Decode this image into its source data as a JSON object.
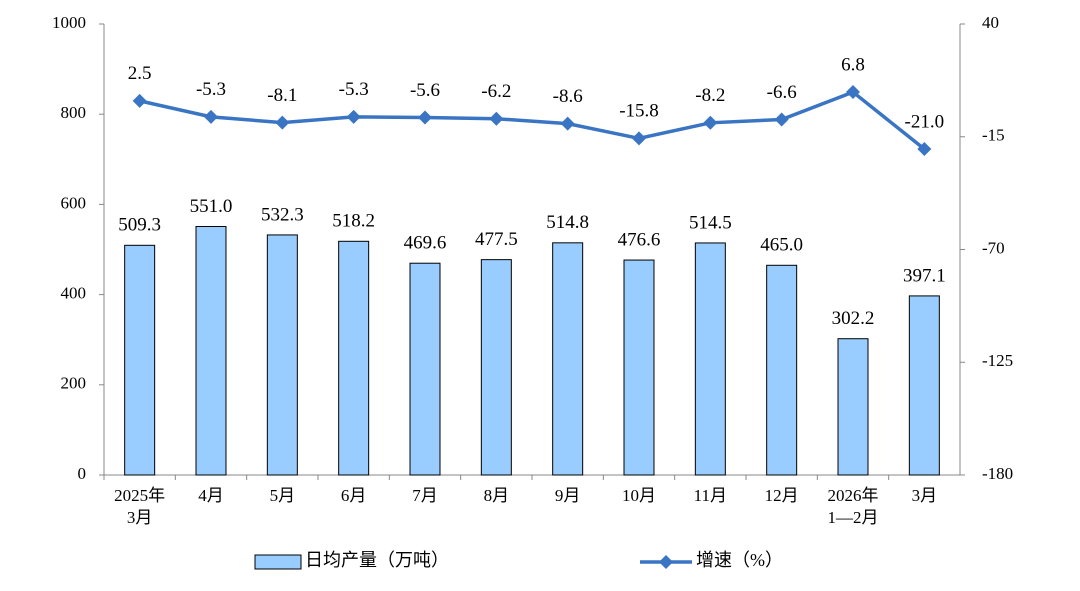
{
  "chart_data": {
    "type": "bar_line",
    "categories": [
      "2025年\n3月",
      "4月",
      "5月",
      "6月",
      "7月",
      "8月",
      "9月",
      "10月",
      "11月",
      "12月",
      "2026年\n1—2月",
      "3月"
    ],
    "series": [
      {
        "name": "日均产量（万吨）",
        "type": "bar",
        "color": "#99ccff",
        "values": [
          509.3,
          551.0,
          532.3,
          518.2,
          469.6,
          477.5,
          514.8,
          476.6,
          514.5,
          465.0,
          302.2,
          397.1
        ],
        "value_labels": [
          "509.3",
          "551.0",
          "532.3",
          "518.2",
          "469.6",
          "477.5",
          "514.8",
          "476.6",
          "514.5",
          "465.0",
          "302.2",
          "397.1"
        ]
      },
      {
        "name": "增速（%）",
        "type": "line",
        "axis": "y2",
        "color": "#3a75c4",
        "values": [
          2.5,
          -5.3,
          -8.1,
          -5.3,
          -5.6,
          -6.2,
          -8.6,
          -15.8,
          -8.2,
          -6.6,
          6.8,
          -21.0
        ],
        "value_labels": [
          "2.5",
          "-5.3",
          "-8.1",
          "-5.3",
          "-5.6",
          "-6.2",
          "-8.6",
          "-15.8",
          "-8.2",
          "-6.6",
          "6.8",
          "-21.0"
        ]
      }
    ],
    "ylim": [
      0,
      1000
    ],
    "yticks": [
      0,
      200,
      400,
      600,
      800,
      1000
    ],
    "y2lim": [
      -180,
      40
    ],
    "y2ticks": [
      -180,
      -125,
      -70,
      -15,
      40
    ]
  }
}
